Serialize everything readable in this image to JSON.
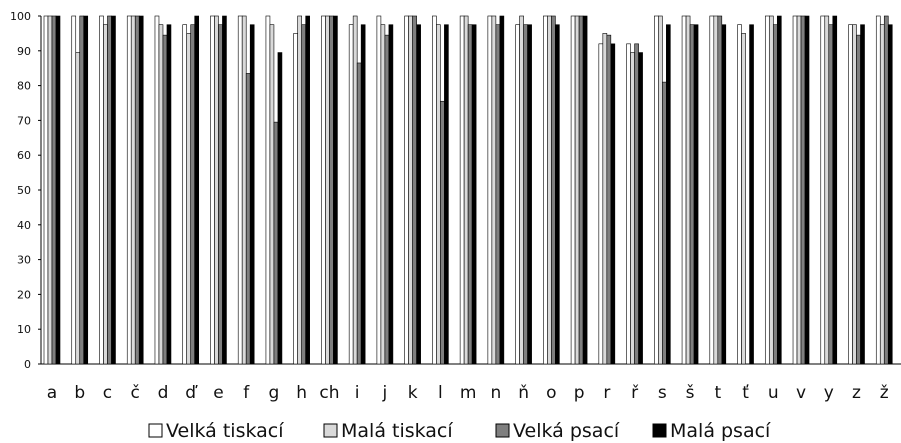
{
  "chart_data": {
    "type": "bar",
    "title": "",
    "xlabel": "",
    "ylabel": "",
    "ylim": [
      0,
      100
    ],
    "yticks": [
      0,
      10,
      20,
      30,
      40,
      50,
      60,
      70,
      80,
      90,
      100
    ],
    "grid": false,
    "legend_position": "bottom",
    "categories": [
      "a",
      "b",
      "c",
      "č",
      "d",
      "ď",
      "e",
      "f",
      "g",
      "h",
      "ch",
      "i",
      "j",
      "k",
      "l",
      "m",
      "n",
      "ň",
      "o",
      "p",
      "r",
      "ř",
      "s",
      "š",
      "t",
      "ť",
      "u",
      "v",
      "y",
      "z",
      "ž"
    ],
    "series": [
      {
        "name": "Velká tiskací",
        "color": "#ffffff",
        "values": [
          100,
          100,
          100,
          100,
          100,
          97.5,
          100,
          100,
          100,
          95,
          100,
          97.5,
          100,
          100,
          100,
          100,
          100,
          97.5,
          100,
          100,
          92,
          92,
          100,
          100,
          100,
          97.5,
          100,
          100,
          100,
          97.5,
          100
        ]
      },
      {
        "name": "Malá tiskací",
        "color": "#d9d9d9",
        "values": [
          100,
          89.5,
          97.5,
          100,
          97.5,
          95,
          100,
          100,
          97.5,
          100,
          100,
          100,
          97.5,
          100,
          97.5,
          100,
          100,
          100,
          100,
          100,
          95,
          89.5,
          100,
          100,
          100,
          95,
          100,
          100,
          100,
          97.5,
          97.5
        ]
      },
      {
        "name": "Velká psací",
        "color": "#7f7f7f",
        "values": [
          100,
          100,
          100,
          100,
          94.5,
          97.5,
          97.5,
          83.5,
          69.5,
          97.5,
          100,
          86.5,
          94.5,
          100,
          75.5,
          97.5,
          97.5,
          97.5,
          100,
          100,
          94.5,
          92,
          81,
          97.5,
          100,
          null,
          97.5,
          100,
          97.5,
          94.5,
          100
        ]
      },
      {
        "name": "Malá psací",
        "color": "#000000",
        "values": [
          100,
          100,
          100,
          100,
          97.5,
          100,
          100,
          97.5,
          89.5,
          100,
          100,
          97.5,
          97.5,
          97.5,
          97.5,
          97.5,
          100,
          97.5,
          97.5,
          100,
          92,
          89.5,
          97.5,
          97.5,
          97.5,
          97.5,
          100,
          100,
          100,
          97.5,
          97.5
        ]
      }
    ]
  }
}
